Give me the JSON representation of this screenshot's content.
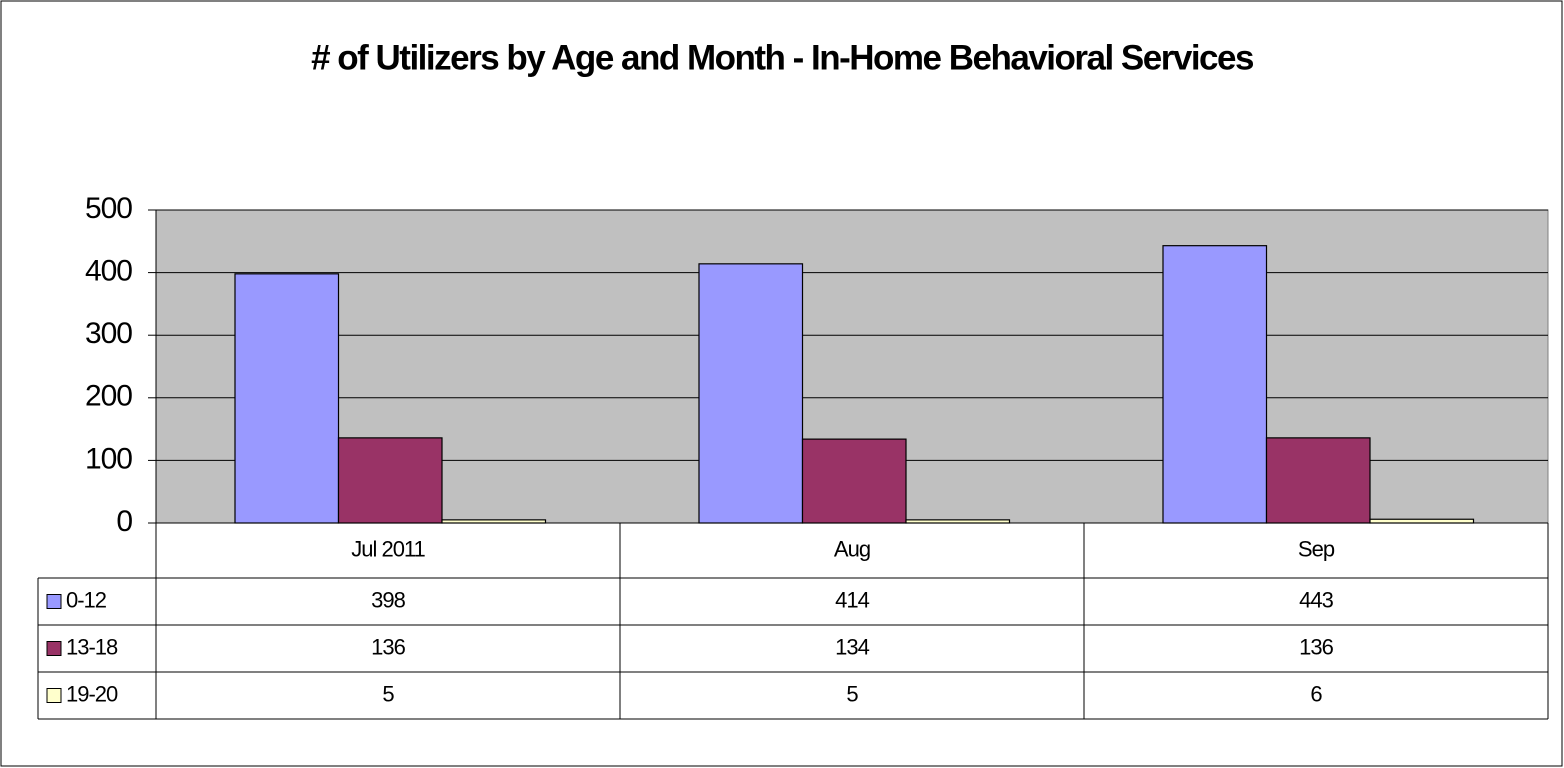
{
  "chart_data": {
    "type": "bar",
    "title": "# of Utilizers by Age and Month - In-Home Behavioral Services",
    "categories": [
      "Jul 2011",
      "Aug",
      "Sep"
    ],
    "series": [
      {
        "name": "0-12",
        "color": "#9999ff",
        "values": [
          398,
          414,
          443
        ]
      },
      {
        "name": "13-18",
        "color": "#993366",
        "values": [
          136,
          134,
          136
        ]
      },
      {
        "name": "19-20",
        "color": "#ffffcc",
        "values": [
          5,
          5,
          6
        ]
      }
    ],
    "ylim": [
      0,
      500
    ],
    "yticks": [
      0,
      100,
      200,
      300,
      400,
      500
    ],
    "grid": true
  }
}
